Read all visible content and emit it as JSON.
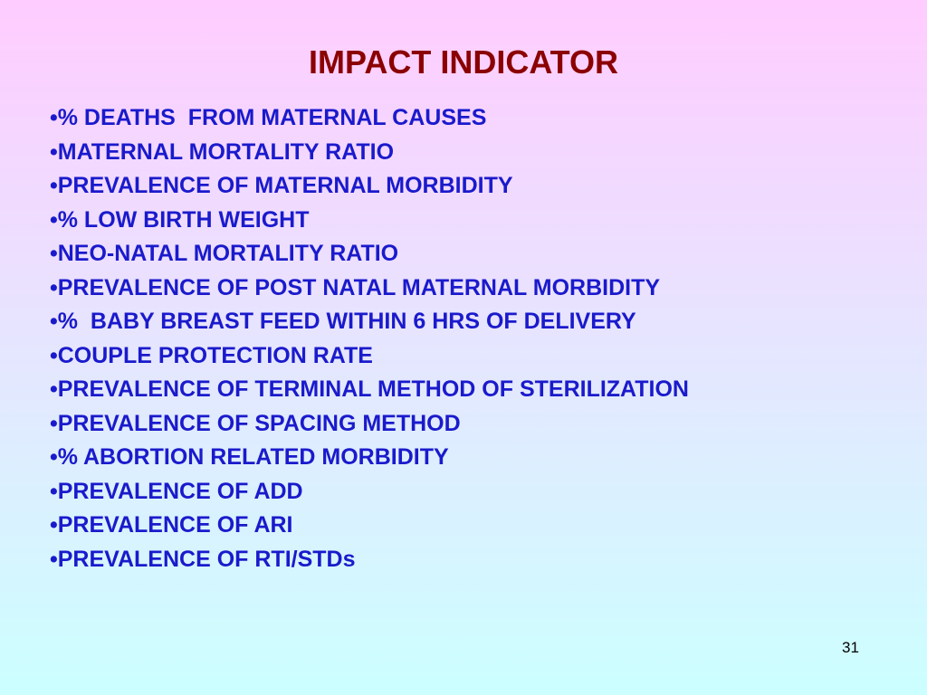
{
  "header": {
    "title": "IMPACT INDICATOR"
  },
  "items": [
    "•% DEATHS  FROM MATERNAL CAUSES",
    "•MATERNAL MORTALITY RATIO",
    "•PREVALENCE OF MATERNAL MORBIDITY",
    "•% LOW BIRTH WEIGHT",
    "•NEO-NATAL MORTALITY RATIO",
    "•PREVALENCE OF POST NATAL MATERNAL MORBIDITY",
    "•%  BABY BREAST FEED WITHIN 6 HRS OF DELIVERY",
    "•COUPLE PROTECTION RATE",
    "•PREVALENCE OF TERMINAL METHOD OF STERILIZATION",
    "•PREVALENCE OF SPACING METHOD",
    "•% ABORTION RELATED MORBIDITY",
    "•PREVALENCE OF ADD",
    "•PREVALENCE OF ARI",
    "•PREVALENCE OF RTI/STDs"
  ],
  "footer": {
    "page_number": "31"
  }
}
